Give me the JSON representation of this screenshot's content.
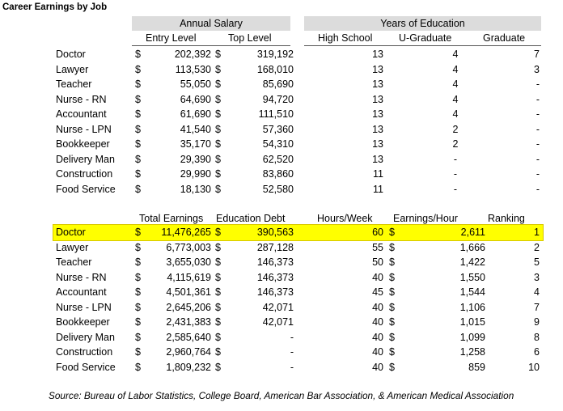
{
  "title": "Career Earnings by Job",
  "table1": {
    "band_salary": "Annual Salary",
    "band_education": "Years of Education",
    "headers": [
      "Entry Level",
      "Top Level",
      "High School",
      "U-Graduate",
      "Graduate"
    ],
    "currency_symbol": "$",
    "rows": [
      {
        "job": "Doctor",
        "entry": "202,392",
        "top": "319,192",
        "hs": "13",
        "ug": "4",
        "grad": "7"
      },
      {
        "job": "Lawyer",
        "entry": "113,530",
        "top": "168,010",
        "hs": "13",
        "ug": "4",
        "grad": "3"
      },
      {
        "job": "Teacher",
        "entry": "55,050",
        "top": "85,690",
        "hs": "13",
        "ug": "4",
        "grad": "-"
      },
      {
        "job": "Nurse - RN",
        "entry": "64,690",
        "top": "94,720",
        "hs": "13",
        "ug": "4",
        "grad": "-"
      },
      {
        "job": "Accountant",
        "entry": "61,690",
        "top": "111,510",
        "hs": "13",
        "ug": "4",
        "grad": "-"
      },
      {
        "job": "Nurse - LPN",
        "entry": "41,540",
        "top": "57,360",
        "hs": "13",
        "ug": "2",
        "grad": "-"
      },
      {
        "job": "Bookkeeper",
        "entry": "35,170",
        "top": "54,310",
        "hs": "13",
        "ug": "2",
        "grad": "-"
      },
      {
        "job": "Delivery Man",
        "entry": "29,390",
        "top": "62,520",
        "hs": "13",
        "ug": "-",
        "grad": "-"
      },
      {
        "job": "Construction",
        "entry": "29,990",
        "top": "83,860",
        "hs": "11",
        "ug": "-",
        "grad": "-"
      },
      {
        "job": "Food Service",
        "entry": "18,130",
        "top": "52,580",
        "hs": "11",
        "ug": "-",
        "grad": "-"
      }
    ]
  },
  "table2": {
    "headers": [
      "Total Earnings",
      "Education Debt",
      "Hours/Week",
      "Earnings/Hour",
      "Ranking"
    ],
    "currency_symbol": "$",
    "highlight_color": "#ffff00",
    "rows": [
      {
        "job": "Doctor",
        "total": "11,476,265",
        "debt": "390,563",
        "hours": "60",
        "eph": "2,611",
        "rank": "1"
      },
      {
        "job": "Lawyer",
        "total": "6,773,003",
        "debt": "287,128",
        "hours": "55",
        "eph": "1,666",
        "rank": "2"
      },
      {
        "job": "Teacher",
        "total": "3,655,030",
        "debt": "146,373",
        "hours": "50",
        "eph": "1,422",
        "rank": "5"
      },
      {
        "job": "Nurse - RN",
        "total": "4,115,619",
        "debt": "146,373",
        "hours": "40",
        "eph": "1,550",
        "rank": "3"
      },
      {
        "job": "Accountant",
        "total": "4,501,361",
        "debt": "146,373",
        "hours": "45",
        "eph": "1,544",
        "rank": "4"
      },
      {
        "job": "Nurse - LPN",
        "total": "2,645,206",
        "debt": "42,071",
        "hours": "40",
        "eph": "1,106",
        "rank": "7"
      },
      {
        "job": "Bookkeeper",
        "total": "2,431,383",
        "debt": "42,071",
        "hours": "40",
        "eph": "1,015",
        "rank": "9"
      },
      {
        "job": "Delivery Man",
        "total": "2,585,640",
        "debt": "-",
        "hours": "40",
        "eph": "1,099",
        "rank": "8"
      },
      {
        "job": "Construction",
        "total": "2,960,764",
        "debt": "-",
        "hours": "40",
        "eph": "1,258",
        "rank": "6"
      },
      {
        "job": "Food Service",
        "total": "1,809,232",
        "debt": "-",
        "hours": "40",
        "eph": "859",
        "rank": "10"
      }
    ]
  },
  "source": "Source:  Bureau of Labor Statistics, College Board, American Bar Association, & American Medical Association"
}
